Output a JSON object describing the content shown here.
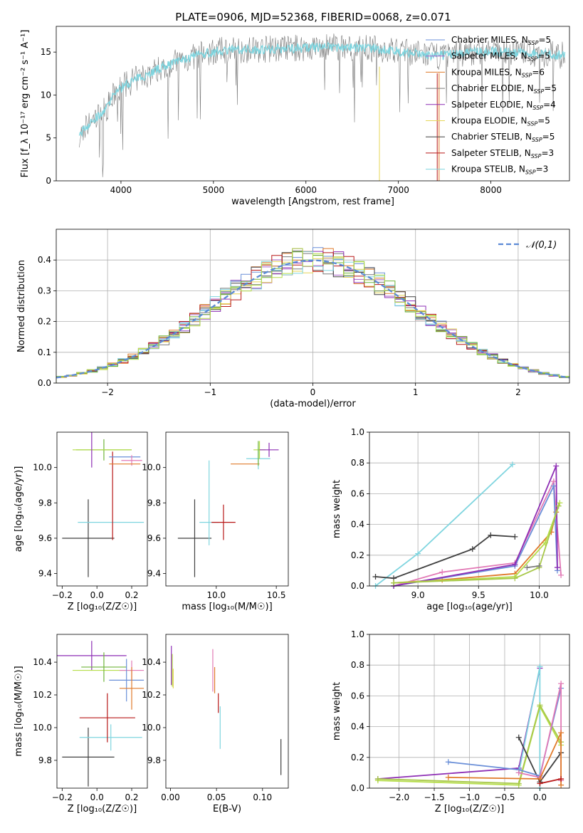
{
  "title": "PLATE=0906, MJD=52368, FIBERID=0068, z=0.071",
  "colors": {
    "cM": "#6a8fd8",
    "sM": "#a55fc8",
    "kM": "#e07a2a",
    "cE": "#7b7b7b",
    "sE": "#8e2fb5",
    "kE": "#e6d657",
    "cS": "#404040",
    "sS": "#b81818",
    "kS": "#7fd5df",
    "pink": "#e27ab6",
    "yg": "#b6de4a",
    "green": "#6fb53a",
    "olive": "#a8c84a",
    "gauss": "#5b8ad6"
  },
  "chart_data": [
    {
      "type": "line",
      "xlabel": "wavelength [Angstrom, rest frame]",
      "ylabel": "Flux [f_λ 10⁻¹⁷ erg cm⁻² s⁻¹ A⁻¹]",
      "xlim": [
        3300,
        8850
      ],
      "ylim": [
        0,
        18
      ],
      "xticks": [
        4000,
        5000,
        6000,
        7000,
        8000
      ],
      "yticks": [
        0,
        5,
        10,
        15
      ],
      "grid": false,
      "legend_position": "top-right",
      "continuum": {
        "x": [
          3550,
          3700,
          3850,
          3950,
          4100,
          4300,
          4500,
          4700,
          4900,
          5100,
          5400,
          5700,
          6000,
          6300,
          6600,
          6900,
          7200,
          7400,
          7600,
          7900,
          8200,
          8500,
          8800
        ],
        "y": [
          5.5,
          7.0,
          8.5,
          10.5,
          11.5,
          12.5,
          13.5,
          14.2,
          14.8,
          15.2,
          15.3,
          15.4,
          15.5,
          15.6,
          15.5,
          15.2,
          14.8,
          14.5,
          14.8,
          15.1,
          15.0,
          14.8,
          14.6
        ]
      },
      "series": [
        {
          "label": "Chabrier MILES, N",
          "sub": "SSP",
          "value": "=5",
          "color": "#6a8fd8"
        },
        {
          "label": "Salpeter MILES, N",
          "sub": "SSP",
          "value": "=5",
          "color": "#a55fc8"
        },
        {
          "label": "Kroupa MILES, N",
          "sub": "SSP",
          "value": "=6",
          "color": "#e07a2a"
        },
        {
          "label": "Chabrier ELODIE, N",
          "sub": "SSP",
          "value": "=5",
          "color": "#7b7b7b"
        },
        {
          "label": "Salpeter ELODIE, N",
          "sub": "SSP",
          "value": "=4",
          "color": "#8e2fb5"
        },
        {
          "label": "Kroupa ELODIE, N",
          "sub": "SSP",
          "value": "=5",
          "color": "#e6d657"
        },
        {
          "label": "Chabrier STELIB, N",
          "sub": "SSP",
          "value": "=5",
          "color": "#404040"
        },
        {
          "label": "Salpeter STELIB, N",
          "sub": "SSP",
          "value": "=3",
          "color": "#b81818"
        },
        {
          "label": "Kroupa STELIB, N",
          "sub": "SSP",
          "value": "=3",
          "color": "#7fd5df"
        }
      ]
    },
    {
      "type": "bar",
      "xlabel": "(data-model)/error",
      "ylabel": "Normed distribution",
      "xlim": [
        -2.5,
        2.5
      ],
      "ylim": [
        0,
        0.5
      ],
      "xticks": [
        -2,
        -1,
        0,
        1,
        2
      ],
      "yticks": [
        0.0,
        0.1,
        0.2,
        0.3,
        0.4
      ],
      "grid": true,
      "bin_edges_range": [
        -2.5,
        2.5
      ],
      "bins": 50,
      "reference_curve": {
        "label": "𝒩(0,1)",
        "mean": 0,
        "sigma": 1,
        "style": "dashed"
      }
    },
    {
      "type": "scatter",
      "xlabel": "Z [log₁₀(Z/Z☉)]",
      "ylabel": "age  [log₁₀(age/yr)]",
      "xlim": [
        -0.23,
        0.29
      ],
      "ylim": [
        9.33,
        10.2
      ],
      "xticks": [
        -0.2,
        0.0,
        0.2
      ],
      "yticks": [
        9.4,
        9.6,
        9.8,
        10.0
      ],
      "points": [
        {
          "x": -0.05,
          "y": 9.6,
          "xerr": 0.15,
          "yerr": 0.22,
          "c": "cS"
        },
        {
          "x": 0.08,
          "y": 9.69,
          "xerr": 0.19,
          "yerr": 0.0,
          "c": "kS"
        },
        {
          "x": 0.09,
          "y": 9.84,
          "xerr": 0.0,
          "yerr": 0.25,
          "c": "sS"
        },
        {
          "x": 0.04,
          "y": 10.1,
          "xerr": 0.16,
          "yerr": 0.06,
          "c": "green"
        },
        {
          "x": 0.03,
          "y": 10.1,
          "xerr": 0.17,
          "yerr": 0.0,
          "c": "yg"
        },
        {
          "x": -0.03,
          "y": 10.1,
          "xerr": 0.0,
          "yerr": 0.1,
          "c": "sE"
        },
        {
          "x": 0.16,
          "y": 10.06,
          "xerr": 0.09,
          "yerr": 0.0,
          "c": "cM"
        },
        {
          "x": 0.2,
          "y": 10.04,
          "xerr": 0.06,
          "yerr": 0.03,
          "c": "pink"
        },
        {
          "x": 0.16,
          "y": 10.02,
          "xerr": 0.09,
          "yerr": 0.0,
          "c": "kM"
        }
      ]
    },
    {
      "type": "scatter",
      "xlabel": "mass [log₁₀(M/M☉)]",
      "ylabel": "",
      "xlim": [
        9.58,
        10.6
      ],
      "ylim": [
        9.33,
        10.2
      ],
      "xticks": [
        10.0,
        10.5
      ],
      "yticks": [
        9.4,
        9.6,
        9.8,
        10.0
      ],
      "points": [
        {
          "x": 9.82,
          "y": 9.6,
          "xerr": 0.14,
          "yerr": 0.22,
          "c": "cS"
        },
        {
          "x": 9.94,
          "y": 9.69,
          "xerr": 0.08,
          "yerr": 0.0,
          "c": "kS"
        },
        {
          "x": 9.94,
          "y": 9.8,
          "xerr": 0.0,
          "yerr": 0.24,
          "c": "kS"
        },
        {
          "x": 10.06,
          "y": 9.69,
          "xerr": 0.1,
          "yerr": 0.1,
          "c": "sS"
        },
        {
          "x": 10.24,
          "y": 10.02,
          "xerr": 0.12,
          "yerr": 0.0,
          "c": "kM"
        },
        {
          "x": 10.35,
          "y": 10.05,
          "xerr": 0.1,
          "yerr": 0.06,
          "c": "kS"
        },
        {
          "x": 10.36,
          "y": 10.1,
          "xerr": 0.05,
          "yerr": 0.05,
          "c": "yg"
        },
        {
          "x": 10.44,
          "y": 10.1,
          "xerr": 0.08,
          "yerr": 0.04,
          "c": "sE"
        },
        {
          "x": 10.35,
          "y": 10.08,
          "xerr": 0.0,
          "yerr": 0.07,
          "c": "green"
        }
      ]
    },
    {
      "type": "line",
      "xlabel": "age  [log₁₀(age/yr)]",
      "ylabel": "mass weight",
      "xlim": [
        8.6,
        10.25
      ],
      "ylim": [
        0,
        1
      ],
      "xticks": [
        9.0,
        9.5,
        10.0
      ],
      "yticks": [
        0.0,
        0.2,
        0.4,
        0.6,
        0.8,
        1.0
      ],
      "grid": true,
      "series": [
        {
          "c": "kS",
          "x": [
            8.65,
            9.0,
            9.78
          ],
          "y": [
            0.0,
            0.21,
            0.79
          ]
        },
        {
          "c": "cS",
          "x": [
            8.65,
            8.8,
            9.45,
            9.6,
            9.8
          ],
          "y": [
            0.06,
            0.05,
            0.24,
            0.33,
            0.32
          ]
        },
        {
          "c": "pink",
          "x": [
            8.8,
            9.2,
            9.8,
            10.12,
            10.18
          ],
          "y": [
            0.0,
            0.09,
            0.15,
            0.68,
            0.07
          ]
        },
        {
          "c": "kM",
          "x": [
            8.8,
            9.2,
            9.8,
            10.1,
            10.14
          ],
          "y": [
            0.02,
            0.04,
            0.08,
            0.35,
            0.48
          ]
        },
        {
          "c": "cM",
          "x": [
            8.8,
            9.8,
            10.12,
            10.15
          ],
          "y": [
            0.0,
            0.13,
            0.65,
            0.1
          ]
        },
        {
          "c": "sE",
          "x": [
            8.8,
            9.8,
            10.14,
            10.15
          ],
          "y": [
            0.0,
            0.14,
            0.78,
            0.12
          ]
        },
        {
          "c": "yg",
          "x": [
            8.8,
            9.8,
            10.05,
            10.17
          ],
          "y": [
            0.02,
            0.06,
            0.28,
            0.54
          ]
        },
        {
          "c": "olive",
          "x": [
            8.8,
            9.8,
            10.0,
            10.16
          ],
          "y": [
            0.02,
            0.05,
            0.12,
            0.52
          ]
        },
        {
          "c": "cE",
          "x": [
            9.9,
            10.0
          ],
          "y": [
            0.12,
            0.13
          ]
        }
      ]
    },
    {
      "type": "scatter",
      "xlabel": "Z [log₁₀(Z/Z☉)]",
      "ylabel": "mass [log₁₀(M/M☉)]",
      "xlim": [
        -0.23,
        0.29
      ],
      "ylim": [
        9.63,
        10.57
      ],
      "xticks": [
        -0.2,
        0.0,
        0.2
      ],
      "yticks": [
        9.8,
        10.0,
        10.2,
        10.4
      ],
      "points": [
        {
          "x": -0.05,
          "y": 9.82,
          "xerr": 0.15,
          "yerr": 0.18,
          "c": "cS"
        },
        {
          "x": 0.08,
          "y": 9.94,
          "xerr": 0.18,
          "yerr": 0.08,
          "c": "kS"
        },
        {
          "x": 0.06,
          "y": 10.06,
          "xerr": 0.16,
          "yerr": 0.15,
          "c": "sS"
        },
        {
          "x": -0.03,
          "y": 10.44,
          "xerr": 0.2,
          "yerr": 0.09,
          "c": "sE"
        },
        {
          "x": 0.03,
          "y": 10.35,
          "xerr": 0.17,
          "yerr": 0.0,
          "c": "yg"
        },
        {
          "x": 0.04,
          "y": 10.37,
          "xerr": 0.13,
          "yerr": 0.09,
          "c": "green"
        },
        {
          "x": 0.2,
          "y": 10.35,
          "xerr": 0.07,
          "yerr": 0.06,
          "c": "pink"
        },
        {
          "x": 0.17,
          "y": 10.29,
          "xerr": 0.1,
          "yerr": 0.13,
          "c": "cM"
        },
        {
          "x": 0.2,
          "y": 10.24,
          "xerr": 0.07,
          "yerr": 0.13,
          "c": "kM"
        }
      ]
    },
    {
      "type": "scatter",
      "xlabel": "E(B-V)",
      "ylabel": "",
      "xlim": [
        -0.005,
        0.128
      ],
      "ylim": [
        9.63,
        10.57
      ],
      "xticks": [
        0.0,
        0.05,
        0.1
      ],
      "yticks": [
        9.8,
        10.0,
        10.2,
        10.4
      ],
      "points": [
        {
          "x": 0.001,
          "y": 10.38,
          "xerr": 0.0,
          "yerr": 0.12,
          "c": "sE"
        },
        {
          "x": 0.002,
          "y": 10.35,
          "xerr": 0.0,
          "yerr": 0.1,
          "c": "yg"
        },
        {
          "x": 0.003,
          "y": 10.3,
          "xerr": 0.0,
          "yerr": 0.06,
          "c": "kE"
        },
        {
          "x": 0.046,
          "y": 10.35,
          "xerr": 0.0,
          "yerr": 0.13,
          "c": "pink"
        },
        {
          "x": 0.048,
          "y": 10.29,
          "xerr": 0.0,
          "yerr": 0.08,
          "c": "kM"
        },
        {
          "x": 0.052,
          "y": 10.15,
          "xerr": 0.0,
          "yerr": 0.06,
          "c": "sS"
        },
        {
          "x": 0.054,
          "y": 10.0,
          "xerr": 0.0,
          "yerr": 0.13,
          "c": "kS"
        },
        {
          "x": 0.12,
          "y": 9.82,
          "xerr": 0.0,
          "yerr": 0.11,
          "c": "cS"
        }
      ]
    },
    {
      "type": "line",
      "xlabel": "Z [log₁₀(Z/Z☉)]",
      "ylabel": "mass weight",
      "xlim": [
        -2.42,
        0.42
      ],
      "ylim": [
        0,
        1
      ],
      "xticks": [
        -2.0,
        -1.5,
        -1.0,
        -0.5,
        0.0
      ],
      "yticks": [
        0.0,
        0.2,
        0.4,
        0.6,
        0.8,
        1.0
      ],
      "grid": true,
      "series": [
        {
          "c": "sE",
          "x": [
            -2.3,
            -0.3,
            0.0
          ],
          "y": [
            0.06,
            0.13,
            0.78
          ]
        },
        {
          "c": "kS",
          "x": [
            -0.3,
            0.0,
            0.0
          ],
          "y": [
            0.1,
            0.79,
            0.0
          ]
        },
        {
          "c": "yg",
          "x": [
            -2.3,
            -0.3,
            0.0,
            0.3
          ],
          "y": [
            0.05,
            0.02,
            0.53,
            0.28
          ]
        },
        {
          "c": "olive",
          "x": [
            -2.3,
            -0.3,
            0.0,
            0.3
          ],
          "y": [
            0.06,
            0.03,
            0.54,
            0.3
          ]
        },
        {
          "c": "cS",
          "x": [
            -0.3,
            0.0,
            0.3
          ],
          "y": [
            0.33,
            0.04,
            0.23
          ]
        },
        {
          "c": "cM",
          "x": [
            -1.3,
            -0.3,
            0.0,
            0.3
          ],
          "y": [
            0.17,
            0.12,
            0.08,
            0.65
          ]
        },
        {
          "c": "pink",
          "x": [
            -0.3,
            0.0,
            0.3,
            0.3
          ],
          "y": [
            0.1,
            0.07,
            0.68,
            0.05
          ]
        },
        {
          "c": "kM",
          "x": [
            -1.3,
            0.0,
            0.3,
            0.3
          ],
          "y": [
            0.07,
            0.06,
            0.36,
            0.02
          ]
        },
        {
          "c": "sS",
          "x": [
            0.0,
            0.3
          ],
          "y": [
            0.03,
            0.06
          ]
        }
      ]
    }
  ]
}
